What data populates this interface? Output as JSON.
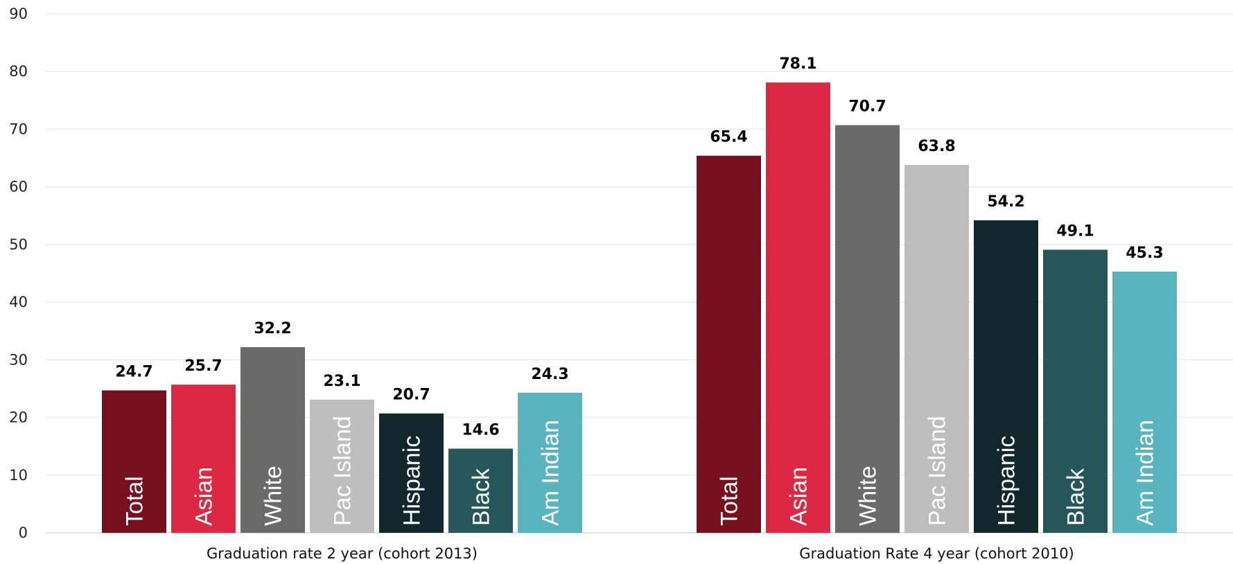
{
  "chart_data": {
    "type": "bar",
    "categories": [
      "Graduation rate 2 year (cohort 2013)",
      "Graduation Rate 4 year (cohort 2010)"
    ],
    "series": [
      {
        "name": "Total",
        "color": "#76101f",
        "values": [
          24.7,
          65.4
        ]
      },
      {
        "name": "Asian",
        "color": "#dc2843",
        "values": [
          25.7,
          78.1
        ]
      },
      {
        "name": "White",
        "color": "#6a6a6a",
        "values": [
          32.2,
          70.7
        ]
      },
      {
        "name": "Pac Island",
        "color": "#bebebe",
        "values": [
          23.1,
          63.8
        ]
      },
      {
        "name": "Hispanic",
        "color": "#12272c",
        "values": [
          20.7,
          54.2
        ]
      },
      {
        "name": "Black",
        "color": "#25565a",
        "values": [
          14.6,
          49.1
        ]
      },
      {
        "name": "Am Indian",
        "color": "#58b5c0",
        "values": [
          24.3,
          45.3
        ]
      }
    ],
    "yticks": [
      0,
      10,
      20,
      30,
      40,
      50,
      60,
      70,
      80,
      90
    ],
    "ylim": [
      0,
      90
    ],
    "grid": true,
    "legend": "none",
    "title": "",
    "xlabel": "",
    "ylabel": ""
  }
}
